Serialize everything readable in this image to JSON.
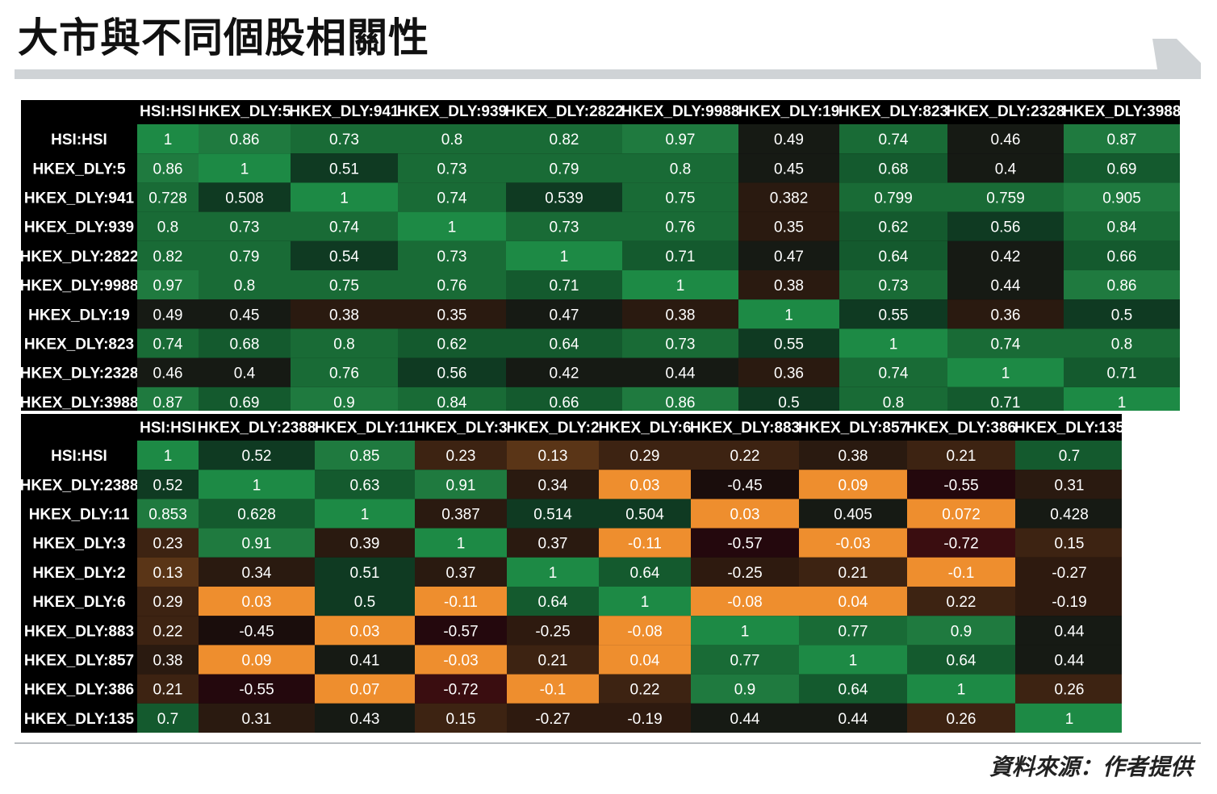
{
  "title": "大市與不同個股相關性",
  "source": "資料來源：作者提供",
  "colors": {
    "high_green": "#1f7a3f",
    "mid_green": "#145a2e",
    "dark": "#111111",
    "brown": "#4a2a15",
    "orange": "#ee8e2e",
    "deep_red": "#3a0d10"
  },
  "chart_data": [
    {
      "type": "heatmap",
      "title": "",
      "columns": [
        "HSI:HSI",
        "HKEX_DLY:5",
        "HKEX_DLY:941",
        "HKEX_DLY:939",
        "HKEX_DLY:2822",
        "HKEX_DLY:9988",
        "HKEX_DLY:19",
        "HKEX_DLY:823",
        "HKEX_DLY:2328",
        "HKEX_DLY:3988"
      ],
      "rows": [
        "HSI:HSI",
        "HKEX_DLY:5",
        "HKEX_DLY:941",
        "HKEX_DLY:939",
        "HKEX_DLY:2822",
        "HKEX_DLY:9988",
        "HKEX_DLY:19",
        "HKEX_DLY:823",
        "HKEX_DLY:2328",
        "HKEX_DLY:3988"
      ],
      "values": [
        [
          "1",
          "0.86",
          "0.73",
          "0.8",
          "0.82",
          "0.97",
          "0.49",
          "0.74",
          "0.46",
          "0.87"
        ],
        [
          "0.86",
          "1",
          "0.51",
          "0.73",
          "0.79",
          "0.8",
          "0.45",
          "0.68",
          "0.4",
          "0.69"
        ],
        [
          "0.728",
          "0.508",
          "1",
          "0.74",
          "0.539",
          "0.75",
          "0.382",
          "0.799",
          "0.759",
          "0.905"
        ],
        [
          "0.8",
          "0.73",
          "0.74",
          "1",
          "0.73",
          "0.76",
          "0.35",
          "0.62",
          "0.56",
          "0.84"
        ],
        [
          "0.82",
          "0.79",
          "0.54",
          "0.73",
          "1",
          "0.71",
          "0.47",
          "0.64",
          "0.42",
          "0.66"
        ],
        [
          "0.97",
          "0.8",
          "0.75",
          "0.76",
          "0.71",
          "1",
          "0.38",
          "0.73",
          "0.44",
          "0.86"
        ],
        [
          "0.49",
          "0.45",
          "0.38",
          "0.35",
          "0.47",
          "0.38",
          "1",
          "0.55",
          "0.36",
          "0.5"
        ],
        [
          "0.74",
          "0.68",
          "0.8",
          "0.62",
          "0.64",
          "0.73",
          "0.55",
          "1",
          "0.74",
          "0.8"
        ],
        [
          "0.46",
          "0.4",
          "0.76",
          "0.56",
          "0.42",
          "0.44",
          "0.36",
          "0.74",
          "1",
          "0.71"
        ],
        [
          "0.87",
          "0.69",
          "0.9",
          "0.84",
          "0.66",
          "0.86",
          "0.5",
          "0.8",
          "0.71",
          "1"
        ]
      ]
    },
    {
      "type": "heatmap",
      "title": "",
      "columns": [
        "HSI:HSI",
        "HKEX_DLY:2388",
        "HKEX_DLY:11",
        "HKEX_DLY:3",
        "HKEX_DLY:2",
        "HKEX_DLY:6",
        "HKEX_DLY:883",
        "HKEX_DLY:857",
        "HKEX_DLY:386",
        "HKEX_DLY:135"
      ],
      "rows": [
        "HSI:HSI",
        "HKEX_DLY:2388",
        "HKEX_DLY:11",
        "HKEX_DLY:3",
        "HKEX_DLY:2",
        "HKEX_DLY:6",
        "HKEX_DLY:883",
        "HKEX_DLY:857",
        "HKEX_DLY:386",
        "HKEX_DLY:135"
      ],
      "values": [
        [
          "1",
          "0.52",
          "0.85",
          "0.23",
          "0.13",
          "0.29",
          "0.22",
          "0.38",
          "0.21",
          "0.7"
        ],
        [
          "0.52",
          "1",
          "0.63",
          "0.91",
          "0.34",
          "0.03",
          "-0.45",
          "0.09",
          "-0.55",
          "0.31"
        ],
        [
          "0.853",
          "0.628",
          "1",
          "0.387",
          "0.514",
          "0.504",
          "0.03",
          "0.405",
          "0.072",
          "0.428"
        ],
        [
          "0.23",
          "0.91",
          "0.39",
          "1",
          "0.37",
          "-0.11",
          "-0.57",
          "-0.03",
          "-0.72",
          "0.15"
        ],
        [
          "0.13",
          "0.34",
          "0.51",
          "0.37",
          "1",
          "0.64",
          "-0.25",
          "0.21",
          "-0.1",
          "-0.27"
        ],
        [
          "0.29",
          "0.03",
          "0.5",
          "-0.11",
          "0.64",
          "1",
          "-0.08",
          "0.04",
          "0.22",
          "-0.19"
        ],
        [
          "0.22",
          "-0.45",
          "0.03",
          "-0.57",
          "-0.25",
          "-0.08",
          "1",
          "0.77",
          "0.9",
          "0.44"
        ],
        [
          "0.38",
          "0.09",
          "0.41",
          "-0.03",
          "0.21",
          "0.04",
          "0.77",
          "1",
          "0.64",
          "0.44"
        ],
        [
          "0.21",
          "-0.55",
          "0.07",
          "-0.72",
          "-0.1",
          "0.22",
          "0.9",
          "0.64",
          "1",
          "0.26"
        ],
        [
          "0.7",
          "0.31",
          "0.43",
          "0.15",
          "-0.27",
          "-0.19",
          "0.44",
          "0.44",
          "0.26",
          "1"
        ]
      ]
    }
  ]
}
